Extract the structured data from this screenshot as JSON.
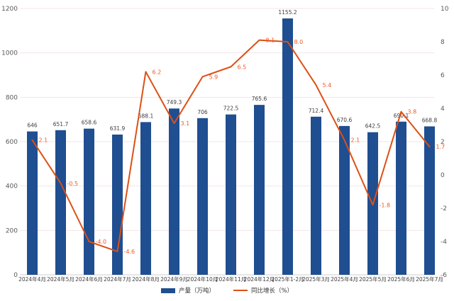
{
  "chart_data": {
    "type": "bar",
    "subtype": "bar-line-combo",
    "title": "",
    "categories": [
      "2024年4月",
      "2024年5月",
      "2024年6月",
      "2024年7月",
      "2024年8月",
      "2024年9月",
      "2024年10月",
      "2024年11月",
      "2024年12月",
      "2025年1-2月",
      "2025年3月",
      "2025年4月",
      "2025年5月",
      "2025年6月",
      "2025年7月"
    ],
    "series": [
      {
        "name": "产量（万吨）",
        "type": "bar",
        "axis": "left",
        "color": "#1F4E91",
        "values": [
          646,
          651.7,
          658.6,
          631.9,
          688.1,
          749.3,
          706,
          722.5,
          765.6,
          1155.2,
          712.4,
          670.6,
          642.5,
          690.1,
          668.8
        ],
        "labels": [
          "646",
          "651.7",
          "658.6",
          "631.9",
          "688.1",
          "749.3",
          "706",
          "722.5",
          "765.6",
          "1155.2",
          "712.4",
          "670.6",
          "642.5",
          "690.1",
          "668.8"
        ]
      },
      {
        "name": "同比增长（%）",
        "type": "line",
        "axis": "right",
        "color": "#DC5014",
        "values": [
          2.1,
          -0.5,
          -4.0,
          -4.6,
          6.2,
          3.1,
          5.9,
          6.5,
          8.1,
          8.0,
          5.4,
          2.1,
          -1.8,
          3.8,
          1.7
        ],
        "labels": [
          "2.1",
          "-0.5",
          "-4.0",
          "-4.6",
          "6.2",
          "3.1",
          "5.9",
          "6.5",
          "8.1",
          "8.0",
          "5.4",
          "2.1",
          "-1.8",
          "3.8",
          "1.7"
        ]
      }
    ],
    "left_axis": {
      "min": 0,
      "max": 1200,
      "step": 200,
      "ticks": [
        "0",
        "200",
        "400",
        "600",
        "800",
        "1000",
        "1200"
      ]
    },
    "right_axis": {
      "min": -6,
      "max": 10,
      "step": 2,
      "ticks": [
        "-6",
        "-4",
        "-2",
        "0",
        "2",
        "4",
        "6",
        "8",
        "10"
      ]
    },
    "grid": true,
    "legend_position": "bottom",
    "colors": {
      "bar": "#1F4E91",
      "line": "#DC5014",
      "line_value_label": "#EC5A2B",
      "bar_value_label": "#3D3D3D",
      "axis_tick_label": "#595959",
      "gridline": "#F3E4E2",
      "baseline": "#CFCFCF",
      "background": "#FFFFFF"
    }
  }
}
